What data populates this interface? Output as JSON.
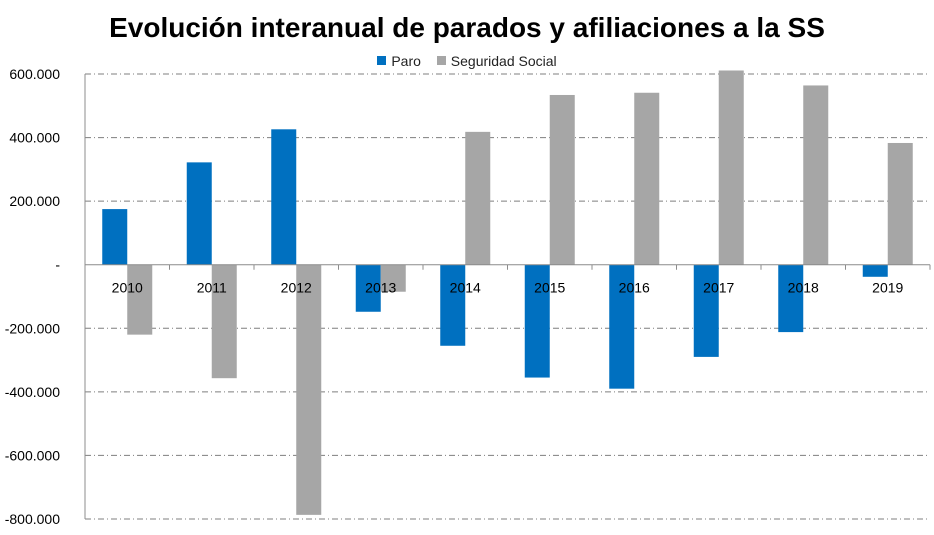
{
  "chart_data": {
    "type": "bar",
    "title": "Evolución interanual de parados y afiliaciones a la SS",
    "categories": [
      "2010",
      "2011",
      "2012",
      "2013",
      "2014",
      "2015",
      "2016",
      "2017",
      "2018",
      "2019"
    ],
    "series": [
      {
        "name": "Paro",
        "color": "#0070C0",
        "values": [
          175000,
          322000,
          426000,
          -148000,
          -255000,
          -355000,
          -390000,
          -290000,
          -212000,
          -38000
        ]
      },
      {
        "name": "Seguridad Social",
        "color": "#A6A6A6",
        "values": [
          -220000,
          -357000,
          -787000,
          -85000,
          418000,
          534000,
          541000,
          611000,
          564000,
          383000
        ]
      }
    ],
    "y_ticks": [
      "600.000",
      "400.000",
      "200.000",
      "-",
      "-200.000",
      "-400.000",
      "-600.000",
      "-800.000"
    ],
    "y_tick_values": [
      600000,
      400000,
      200000,
      0,
      -200000,
      -400000,
      -600000,
      -800000
    ],
    "ylim": [
      -800000,
      600000
    ],
    "grid": true,
    "legend_position": "top-center"
  }
}
